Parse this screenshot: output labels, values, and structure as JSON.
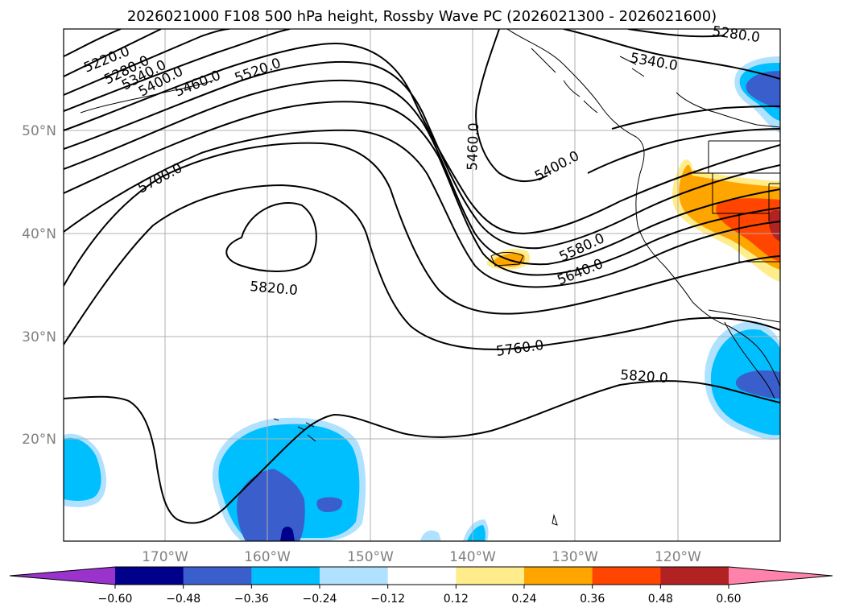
{
  "title": "2026021000 F108 500 hPa height, Rossby Wave PC (2026021300 - 2026021600)",
  "lat_labels": [
    "50°N",
    "40°N",
    "30°N",
    "20°N"
  ],
  "lon_labels": [
    "170°W",
    "160°W",
    "150°W",
    "140°W",
    "130°W",
    "120°W"
  ],
  "contour_labels": [
    "5220.0",
    "5280.0",
    "5340.0",
    "5400.0",
    "5460.0",
    "5520.0",
    "5700.0",
    "5820.0",
    "5460.0",
    "5400.0",
    "5280.0",
    "5340.0",
    "5580.0",
    "5640.0",
    "5760.0",
    "5820.0"
  ],
  "colorbar": {
    "ticks": [
      "−0.60",
      "−0.48",
      "−0.36",
      "−0.24",
      "−0.12",
      "0.12",
      "0.24",
      "0.36",
      "0.48",
      "0.60"
    ],
    "colors": [
      "#9933cc",
      "#00008b",
      "#3a5fcd",
      "#00bfff",
      "#b0e2ff",
      "#ffffff",
      "#ffec8b",
      "#ffa500",
      "#ff4500",
      "#b22222",
      "#ff82ab"
    ]
  },
  "colors": {
    "grid": "#b0b0b0",
    "axis_label": "#808080"
  }
}
